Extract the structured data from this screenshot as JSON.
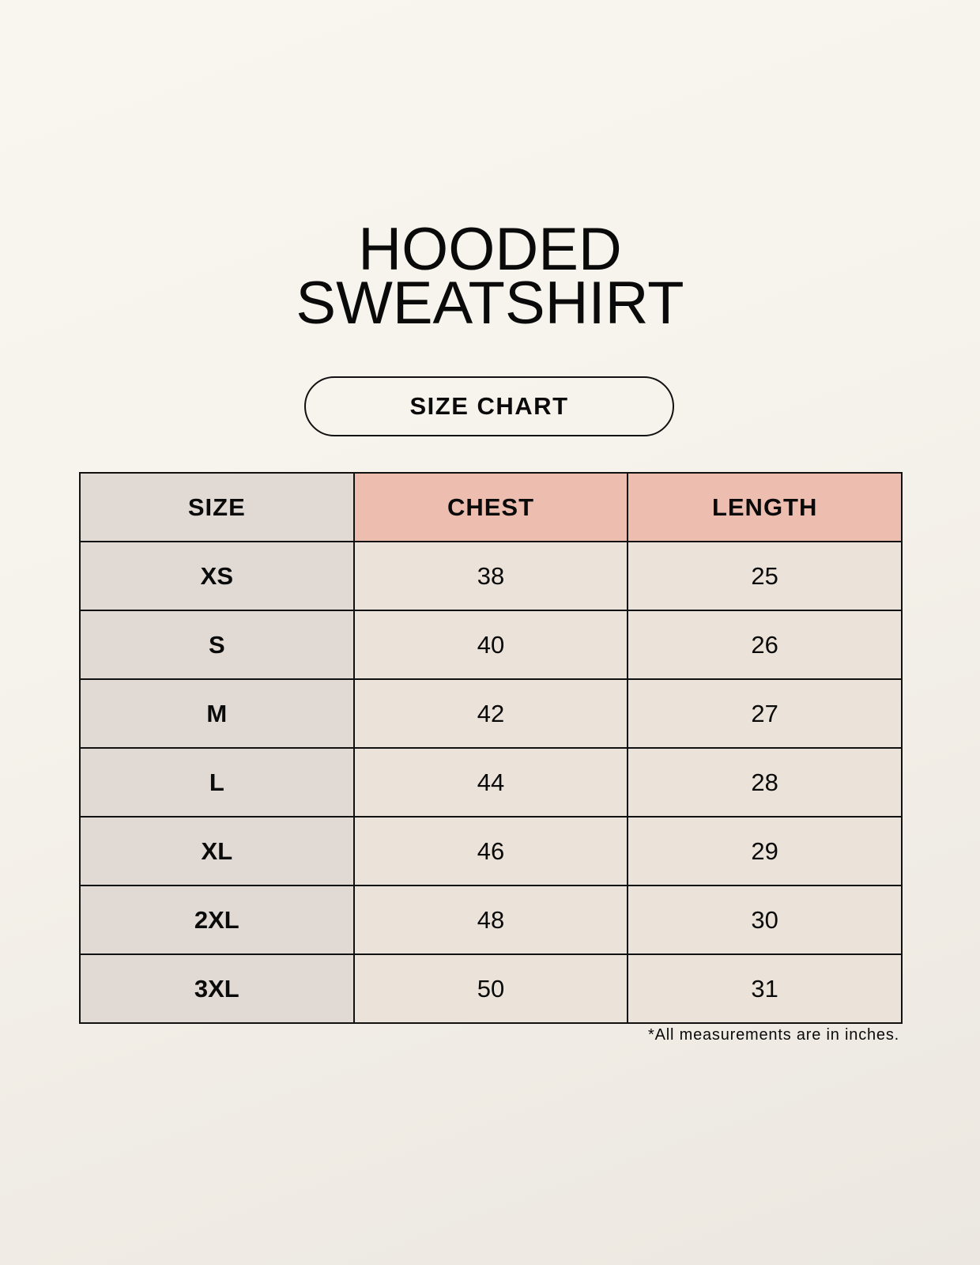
{
  "title": {
    "line1": "HOODED",
    "line2": "SWEATSHIRT"
  },
  "subtitle": "SIZE CHART",
  "table": {
    "headers": [
      "SIZE",
      "CHEST",
      "LENGTH"
    ],
    "rows": [
      {
        "size": "XS",
        "chest": "38",
        "length": "25"
      },
      {
        "size": "S",
        "chest": "40",
        "length": "26"
      },
      {
        "size": "M",
        "chest": "42",
        "length": "27"
      },
      {
        "size": "L",
        "chest": "44",
        "length": "28"
      },
      {
        "size": "XL",
        "chest": "46",
        "length": "29"
      },
      {
        "size": "2XL",
        "chest": "48",
        "length": "30"
      },
      {
        "size": "3XL",
        "chest": "50",
        "length": "31"
      }
    ]
  },
  "footnote": "*All measurements are in inches.",
  "colors": {
    "size_column": "#e0d9d4",
    "header_accent": "#edbdb0",
    "value_cell": "#ebe3d9"
  }
}
